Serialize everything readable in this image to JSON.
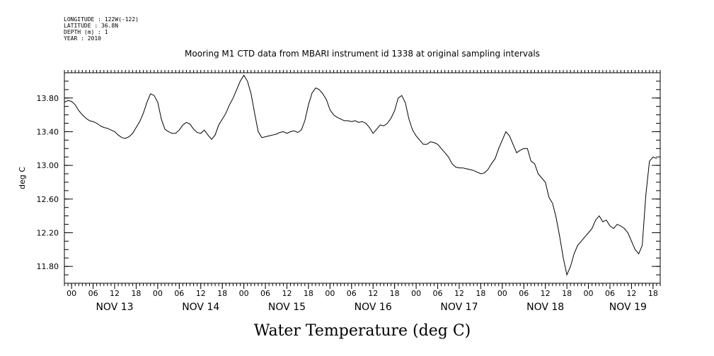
{
  "meta": {
    "longitude": "LONGITUDE : 122W(-122)",
    "latitude": "LATITUDE : 36.8N",
    "depth": "DEPTH (m) : 1",
    "year": "YEAR : 2010"
  },
  "chart_data": {
    "type": "line",
    "title": "Mooring M1 CTD data from MBARI instrument id 1338 at original sampling intervals",
    "bottom_title": "Water Temperature (deg C)",
    "ylabel": "deg C",
    "xlabel": "",
    "x_unit": "hours since NOV 13 00:00",
    "xlim": [
      -2,
      164
    ],
    "ylim": [
      11.6,
      14.1
    ],
    "yticks": [
      11.8,
      12.2,
      12.6,
      13.0,
      13.4,
      13.8
    ],
    "ytick_labels": [
      "11.80",
      "12.20",
      "12.60",
      "13.00",
      "13.40",
      "13.80"
    ],
    "hour_ticks": [
      0,
      6,
      12,
      18,
      24,
      30,
      36,
      42,
      48,
      54,
      60,
      66,
      72,
      78,
      84,
      90,
      96,
      102,
      108,
      114,
      120,
      126,
      132,
      138,
      144,
      150,
      156,
      162
    ],
    "hour_tick_labels": [
      "00",
      "06",
      "12",
      "18",
      "00",
      "06",
      "12",
      "18",
      "00",
      "06",
      "12",
      "18",
      "00",
      "06",
      "12",
      "18",
      "00",
      "06",
      "12",
      "18",
      "00",
      "06",
      "12",
      "18",
      "00",
      "06",
      "12",
      "18"
    ],
    "days": [
      {
        "label": "NOV 13",
        "x": 12
      },
      {
        "label": "NOV 14",
        "x": 36
      },
      {
        "label": "NOV 15",
        "x": 60
      },
      {
        "label": "NOV 16",
        "x": 84
      },
      {
        "label": "NOV 17",
        "x": 108
      },
      {
        "label": "NOV 18",
        "x": 132
      },
      {
        "label": "NOV 19",
        "x": 155
      }
    ],
    "grid": false,
    "series": [
      {
        "points": [
          [
            -2,
            13.75
          ],
          [
            -1,
            13.77
          ],
          [
            0,
            13.76
          ],
          [
            1,
            13.72
          ],
          [
            2,
            13.65
          ],
          [
            3,
            13.6
          ],
          [
            4,
            13.56
          ],
          [
            5,
            13.53
          ],
          [
            6,
            13.52
          ],
          [
            7,
            13.5
          ],
          [
            8,
            13.47
          ],
          [
            9,
            13.45
          ],
          [
            10,
            13.44
          ],
          [
            11,
            13.42
          ],
          [
            12,
            13.4
          ],
          [
            13,
            13.36
          ],
          [
            14,
            13.33
          ],
          [
            15,
            13.32
          ],
          [
            16,
            13.34
          ],
          [
            17,
            13.38
          ],
          [
            18,
            13.45
          ],
          [
            19,
            13.52
          ],
          [
            20,
            13.62
          ],
          [
            21,
            13.75
          ],
          [
            22,
            13.85
          ],
          [
            23,
            13.83
          ],
          [
            24,
            13.75
          ],
          [
            25,
            13.55
          ],
          [
            26,
            13.43
          ],
          [
            27,
            13.4
          ],
          [
            28,
            13.38
          ],
          [
            29,
            13.38
          ],
          [
            30,
            13.42
          ],
          [
            31,
            13.48
          ],
          [
            32,
            13.51
          ],
          [
            33,
            13.49
          ],
          [
            34,
            13.43
          ],
          [
            35,
            13.39
          ],
          [
            36,
            13.38
          ],
          [
            37,
            13.42
          ],
          [
            38,
            13.36
          ],
          [
            39,
            13.31
          ],
          [
            40,
            13.36
          ],
          [
            41,
            13.48
          ],
          [
            42,
            13.55
          ],
          [
            43,
            13.62
          ],
          [
            44,
            13.72
          ],
          [
            45,
            13.8
          ],
          [
            46,
            13.9
          ],
          [
            47,
            14.0
          ],
          [
            48,
            14.07
          ],
          [
            49,
            14.0
          ],
          [
            50,
            13.85
          ],
          [
            51,
            13.62
          ],
          [
            52,
            13.4
          ],
          [
            53,
            13.33
          ],
          [
            54,
            13.34
          ],
          [
            55,
            13.35
          ],
          [
            56,
            13.36
          ],
          [
            57,
            13.37
          ],
          [
            58,
            13.39
          ],
          [
            59,
            13.4
          ],
          [
            60,
            13.38
          ],
          [
            61,
            13.4
          ],
          [
            62,
            13.41
          ],
          [
            63,
            13.39
          ],
          [
            64,
            13.42
          ],
          [
            65,
            13.53
          ],
          [
            66,
            13.72
          ],
          [
            67,
            13.86
          ],
          [
            68,
            13.92
          ],
          [
            69,
            13.9
          ],
          [
            70,
            13.85
          ],
          [
            71,
            13.78
          ],
          [
            72,
            13.66
          ],
          [
            73,
            13.6
          ],
          [
            74,
            13.57
          ],
          [
            75,
            13.55
          ],
          [
            76,
            13.53
          ],
          [
            77,
            13.53
          ],
          [
            78,
            13.52
          ],
          [
            79,
            13.53
          ],
          [
            80,
            13.51
          ],
          [
            81,
            13.52
          ],
          [
            82,
            13.5
          ],
          [
            83,
            13.45
          ],
          [
            84,
            13.38
          ],
          [
            85,
            13.43
          ],
          [
            86,
            13.48
          ],
          [
            87,
            13.47
          ],
          [
            88,
            13.5
          ],
          [
            89,
            13.56
          ],
          [
            90,
            13.65
          ],
          [
            91,
            13.8
          ],
          [
            92,
            13.83
          ],
          [
            93,
            13.74
          ],
          [
            94,
            13.55
          ],
          [
            95,
            13.42
          ],
          [
            96,
            13.35
          ],
          [
            97,
            13.3
          ],
          [
            98,
            13.25
          ],
          [
            99,
            13.25
          ],
          [
            100,
            13.28
          ],
          [
            101,
            13.27
          ],
          [
            102,
            13.25
          ],
          [
            103,
            13.2
          ],
          [
            104,
            13.15
          ],
          [
            105,
            13.1
          ],
          [
            106,
            13.02
          ],
          [
            107,
            12.98
          ],
          [
            108,
            12.97
          ],
          [
            109,
            12.97
          ],
          [
            110,
            12.96
          ],
          [
            111,
            12.95
          ],
          [
            112,
            12.94
          ],
          [
            113,
            12.92
          ],
          [
            114,
            12.9
          ],
          [
            115,
            12.91
          ],
          [
            116,
            12.95
          ],
          [
            117,
            13.02
          ],
          [
            118,
            13.08
          ],
          [
            119,
            13.2
          ],
          [
            120,
            13.3
          ],
          [
            121,
            13.4
          ],
          [
            122,
            13.35
          ],
          [
            123,
            13.25
          ],
          [
            124,
            13.15
          ],
          [
            125,
            13.18
          ],
          [
            126,
            13.2
          ],
          [
            127,
            13.2
          ],
          [
            128,
            13.05
          ],
          [
            129,
            13.02
          ],
          [
            130,
            12.9
          ],
          [
            131,
            12.85
          ],
          [
            132,
            12.8
          ],
          [
            133,
            12.62
          ],
          [
            134,
            12.55
          ],
          [
            135,
            12.38
          ],
          [
            136,
            12.15
          ],
          [
            137,
            11.9
          ],
          [
            138,
            11.7
          ],
          [
            139,
            11.8
          ],
          [
            140,
            11.95
          ],
          [
            141,
            12.05
          ],
          [
            142,
            12.1
          ],
          [
            143,
            12.15
          ],
          [
            144,
            12.2
          ],
          [
            145,
            12.25
          ],
          [
            146,
            12.35
          ],
          [
            147,
            12.4
          ],
          [
            148,
            12.33
          ],
          [
            149,
            12.35
          ],
          [
            150,
            12.28
          ],
          [
            151,
            12.25
          ],
          [
            152,
            12.3
          ],
          [
            153,
            12.28
          ],
          [
            154,
            12.25
          ],
          [
            155,
            12.2
          ],
          [
            156,
            12.1
          ],
          [
            157,
            12.0
          ],
          [
            158,
            11.95
          ],
          [
            159,
            12.05
          ],
          [
            160,
            12.65
          ],
          [
            161,
            13.05
          ],
          [
            162,
            13.1
          ],
          [
            163,
            13.08
          ]
        ]
      }
    ]
  }
}
